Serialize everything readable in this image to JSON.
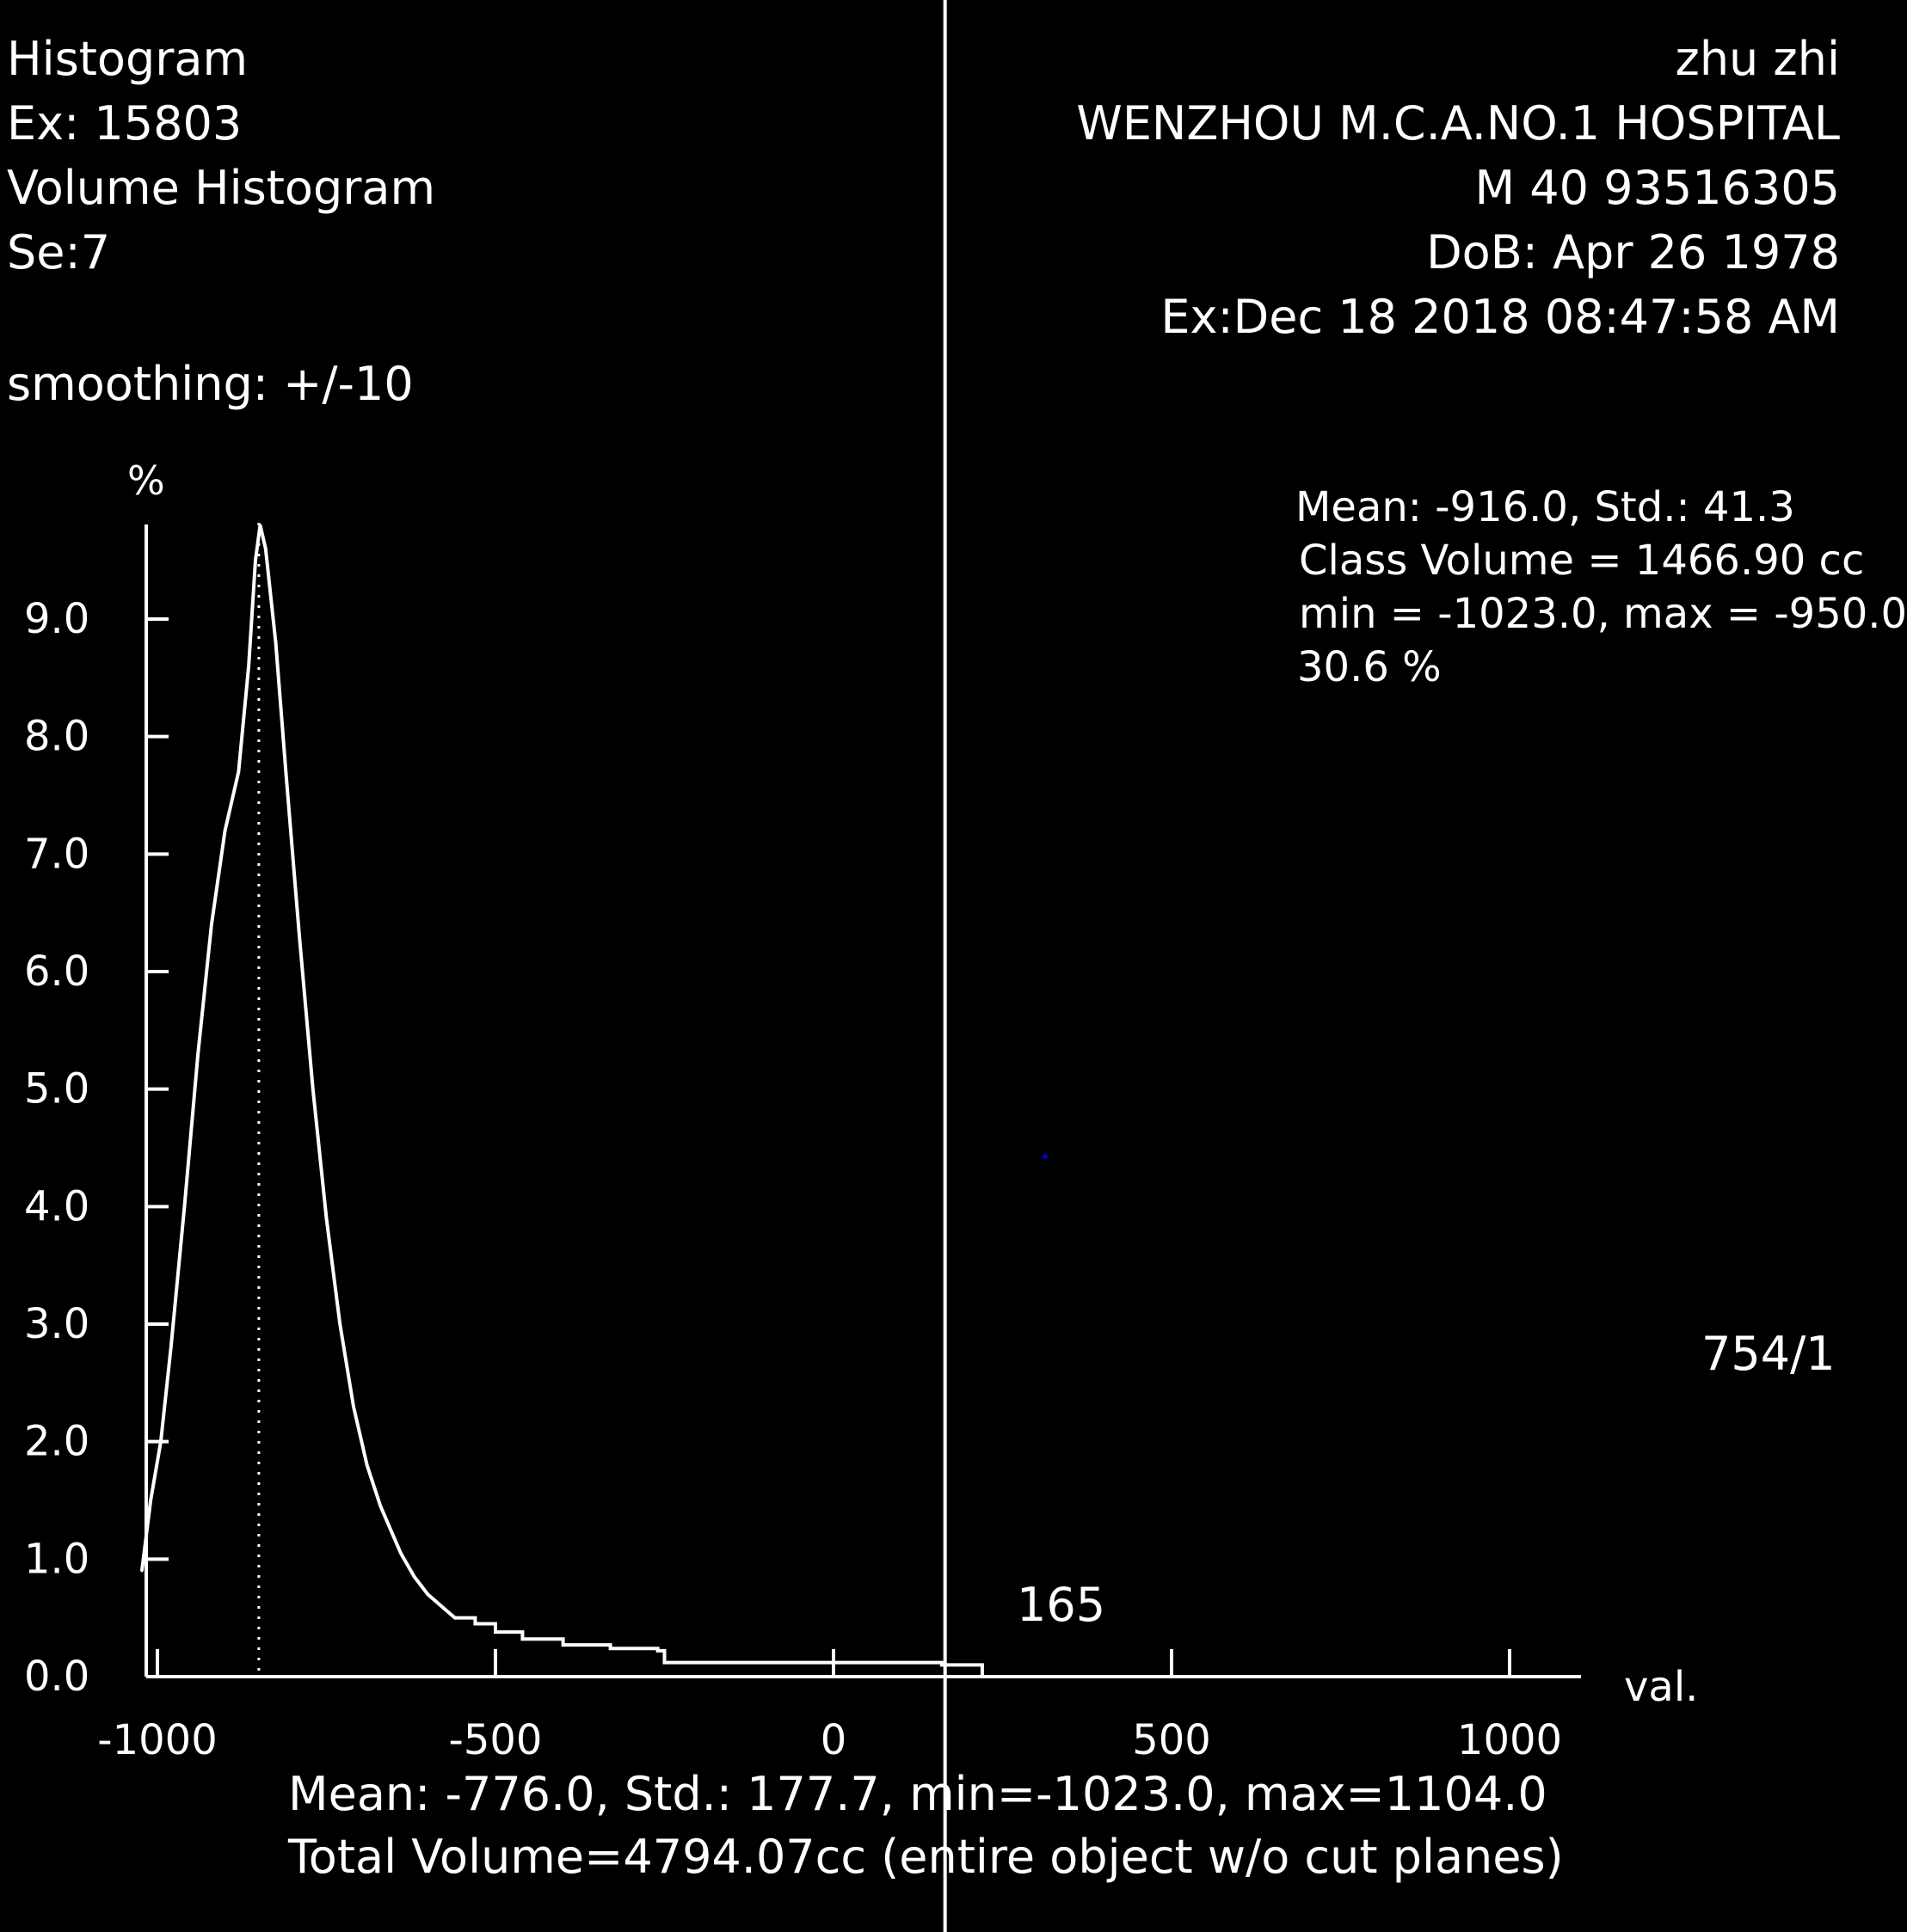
{
  "header_left": {
    "mode": "Histogram",
    "exam": "Ex: 15803",
    "view": "Volume Histogram",
    "series": "Se:7",
    "smoothing": "smoothing: +/-10"
  },
  "header_right": {
    "patient_name": "zhu zhi",
    "institution": "WENZHOU M.C.A.NO.1 HOSPITAL",
    "patient_id": "M 40 93516305",
    "dob": "DoB: Apr 26 1978",
    "exam_date": "Ex:Dec 18 2018 08:47:58 AM"
  },
  "class_stats": {
    "line1": "Mean: -916.0, Std.: 41.3",
    "line2": "Class Volume = 1466.90 cc",
    "line3": "min = -1023.0, max = -950.0",
    "line4": "30.6 %"
  },
  "side_labels": {
    "frame": "754/1",
    "cursor_value": "165"
  },
  "footer": {
    "stats": "Mean: -776.0, Std.: 177.7, min=-1023.0, max=1104.0",
    "total": "Total Volume=4794.07cc (entire object w/o cut planes)"
  },
  "colors": {
    "background": "#000000",
    "foreground": "#ffffff",
    "marker": "#0000cc"
  },
  "chart_data": {
    "type": "line",
    "title": "",
    "xlabel": "val.",
    "ylabel": "%",
    "xlim": [
      -1030,
      1100
    ],
    "ylim": [
      0,
      9.9
    ],
    "x_ticks": [
      -1000,
      -500,
      0,
      500,
      1000
    ],
    "x_tick_labels": [
      "-1000",
      "-500",
      "0",
      "500",
      "1000"
    ],
    "y_ticks": [
      0,
      1,
      2,
      3,
      4,
      5,
      6,
      7,
      8,
      9
    ],
    "y_tick_labels": [
      "0.0",
      "1.0",
      "2.0",
      "3.0",
      "4.0",
      "5.0",
      "6.0",
      "7.0",
      "8.0",
      "9.0"
    ],
    "grid": false,
    "class_boundary_x": -850,
    "cursor_x": 165,
    "series": [
      {
        "x": [
          -1023,
          -1010,
          -995,
          -980,
          -960,
          -940,
          -920,
          -900,
          -880,
          -865,
          -855,
          -848,
          -840,
          -825,
          -810,
          -790,
          -770,
          -750,
          -730,
          -710,
          -690,
          -670,
          -655,
          -640,
          -620,
          -600,
          -580,
          -560,
          -530,
          -500,
          -460,
          -400,
          -330,
          -260,
          -250,
          -150,
          -50,
          0,
          100,
          160,
          200,
          220
        ],
        "y": [
          0.9,
          1.5,
          2.0,
          2.8,
          4.0,
          5.3,
          6.4,
          7.2,
          7.7,
          8.6,
          9.5,
          9.8,
          9.6,
          8.8,
          7.7,
          6.3,
          5.0,
          3.9,
          3.0,
          2.3,
          1.8,
          1.45,
          1.25,
          1.05,
          0.85,
          0.7,
          0.6,
          0.5,
          0.45,
          0.38,
          0.32,
          0.27,
          0.24,
          0.22,
          0.12,
          0.12,
          0.12,
          0.12,
          0.12,
          0.1,
          0.1,
          0.0
        ]
      }
    ]
  }
}
